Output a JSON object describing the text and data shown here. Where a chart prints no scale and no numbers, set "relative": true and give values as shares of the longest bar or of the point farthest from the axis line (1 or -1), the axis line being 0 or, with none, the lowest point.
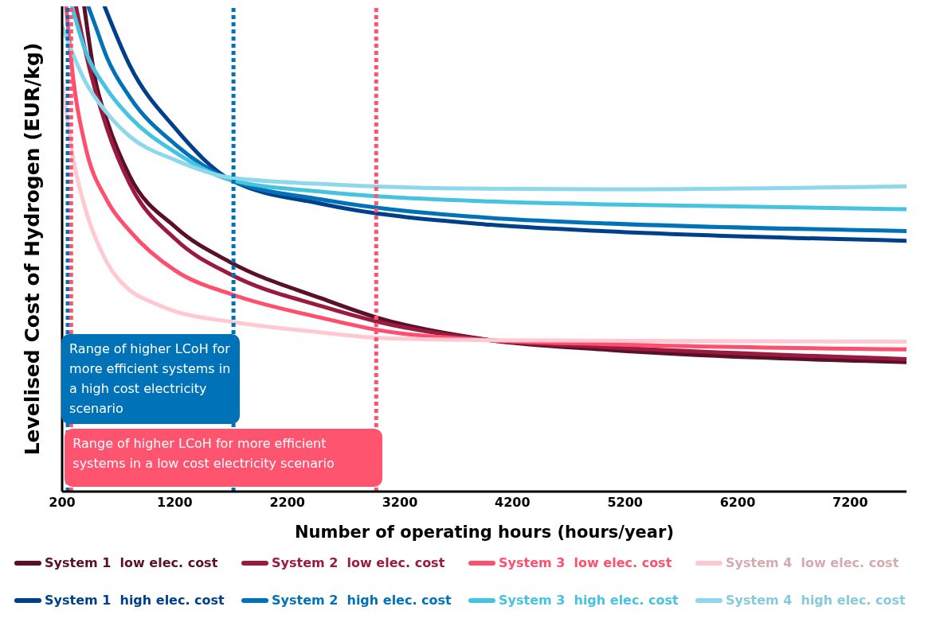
{
  "chart_data": {
    "type": "line",
    "relative": true,
    "xlabel": "Number of operating hours (hours/year)",
    "ylabel": "Levelised Cost of Hydrogen (EUR/kg)",
    "xlim": [
      200,
      7700
    ],
    "xticks": [
      200,
      1200,
      2200,
      3200,
      4200,
      5200,
      6200,
      7200
    ],
    "grid": false,
    "legend": "bottom",
    "marker": "none",
    "line_style": "solid",
    "series": [
      {
        "name": "System 1  low elec. cost",
        "color": "#5a0f2a",
        "x": [
          396,
          497,
          599,
          801,
          1207,
          1700,
          2504,
          3004,
          4004,
          5004,
          7700
        ],
        "values": [
          1,
          0.846,
          0.764,
          0.65,
          0.545,
          0.472,
          0.398,
          0.358,
          0.312,
          0.293,
          0.267
        ]
      },
      {
        "name": "System 2  low elec. cost",
        "color": "#9b1b3f",
        "x": [
          323,
          403,
          599,
          801,
          1207,
          1700,
          2504,
          3004,
          4004,
          5004,
          7700
        ],
        "values": [
          1,
          0.911,
          0.748,
          0.634,
          0.52,
          0.447,
          0.382,
          0.35,
          0.312,
          0.298,
          0.273
        ]
      },
      {
        "name": "System 3  low elec. cost",
        "color": "#ff4f6e",
        "x": [
          236,
          301,
          403,
          599,
          801,
          1207,
          1700,
          2504,
          3004,
          4004,
          5004,
          7700
        ],
        "values": [
          1,
          0.846,
          0.715,
          0.6,
          0.537,
          0.455,
          0.407,
          0.358,
          0.333,
          0.312,
          0.304,
          0.293
        ]
      },
      {
        "name": "System 4  low elec. cost",
        "color": "#ffc8d2",
        "x": [
          200,
          301,
          403,
          599,
          801,
          1000,
          1207,
          1700,
          2504,
          3004,
          4004,
          7700
        ],
        "values": [
          0.846,
          0.683,
          0.585,
          0.472,
          0.415,
          0.39,
          0.371,
          0.35,
          0.328,
          0.317,
          0.312,
          0.309
        ]
      },
      {
        "name": "System 1  high elec. cost",
        "color": "#003f8a",
        "x": [
          577,
          801,
          1207,
          1700,
          2504,
          4004,
          5004,
          7700
        ],
        "values": [
          1,
          0.878,
          0.748,
          0.642,
          0.593,
          0.55,
          0.537,
          0.517
        ]
      },
      {
        "name": "System 2  high elec. cost",
        "color": "#0072b8",
        "x": [
          432,
          497,
          599,
          801,
          1207,
          1700,
          2504,
          4004,
          5004,
          7700
        ],
        "values": [
          1,
          0.959,
          0.894,
          0.813,
          0.715,
          0.642,
          0.602,
          0.564,
          0.553,
          0.537
        ]
      },
      {
        "name": "System 3  high elec. cost",
        "color": "#46c3e0",
        "x": [
          287,
          403,
          599,
          801,
          1207,
          1700,
          2504,
          4004,
          5004,
          7700
        ],
        "values": [
          1,
          0.911,
          0.829,
          0.772,
          0.699,
          0.642,
          0.618,
          0.598,
          0.592,
          0.582
        ]
      },
      {
        "name": "System 4  high elec. cost",
        "color": "#8fd8ec",
        "x": [
          200,
          403,
          599,
          801,
          1207,
          1700,
          2504,
          4004,
          5004,
          7700
        ],
        "values": [
          0.959,
          0.846,
          0.78,
          0.732,
          0.683,
          0.647,
          0.634,
          0.624,
          0.623,
          0.629
        ]
      }
    ],
    "ref_lines": [
      {
        "axis": "x",
        "value": 250,
        "color": "#0072b8",
        "line_style": "dotted"
      },
      {
        "axis": "x",
        "value": 1722,
        "color": "#0072b8",
        "line_style": "dotted"
      },
      {
        "axis": "x",
        "value": 280,
        "color": "#ff5470",
        "line_style": "dotted"
      },
      {
        "axis": "x",
        "value": 2990,
        "color": "#ff5470",
        "line_style": "dotted"
      }
    ],
    "annotations": [
      "Range of higher LCoH for more efficient systems in a high cost electricity scenario",
      "Range of higher LCoH for more efficient systems in a low cost electricity scenario"
    ]
  }
}
